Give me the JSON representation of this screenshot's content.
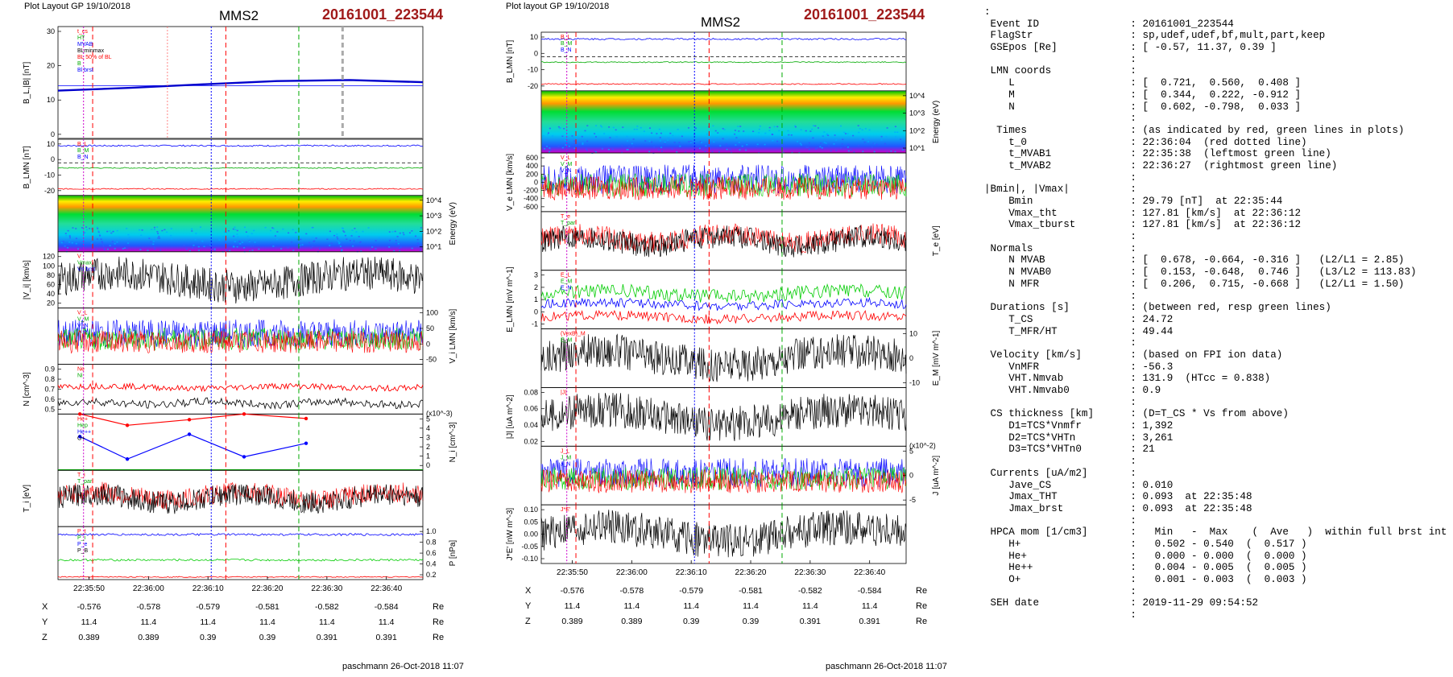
{
  "left_plot": {
    "header": "Plot Layout GP 19/10/2018",
    "spacecraft": "MMS2",
    "event": "20161001_223544",
    "footer": "paschmann 26-Oct-2018 11:07",
    "time_ticks": [
      "22:35:50",
      "22:36:00",
      "22:36:10",
      "22:36:20",
      "22:36:30",
      "22:36:40"
    ],
    "coords": {
      "X": [
        "-0.576",
        "-0.578",
        "-0.579",
        "-0.581",
        "-0.582",
        "-0.584"
      ],
      "Y": [
        "11.4",
        "11.4",
        "11.4",
        "11.4",
        "11.4",
        "11.4"
      ],
      "Z": [
        "0.389",
        "0.389",
        "0.39",
        "0.39",
        "0.391",
        "0.391"
      ],
      "unit": "Re"
    },
    "panels": [
      {
        "ylabel": "B_L,|B| [nT]",
        "ylabel_side": "left",
        "yticks": [
          "30",
          "20",
          "10",
          "0"
        ],
        "legend": [
          "t_cs",
          "HT",
          "MVAB",
          "BLminmax",
          "BL 50% of BL",
          "B",
          "Bl brst"
        ]
      },
      {
        "ylabel": "B_LMN [nT]",
        "ylabel_side": "left",
        "yticks": [
          "10",
          "0",
          "-10",
          "-20"
        ],
        "legend": [
          "B_L",
          "B_M",
          "B_N"
        ]
      },
      {
        "ylabel": "Energy (eV)",
        "ylabel_side": "right",
        "yticks": [
          "10^4",
          "10^3",
          "10^2",
          "10^1"
        ],
        "legend": []
      },
      {
        "ylabel": "|V_i| [km/s]",
        "ylabel_side": "left",
        "yticks": [
          "120",
          "100",
          "80",
          "60",
          "40",
          "20"
        ],
        "legend": [
          "V",
          "Vmax",
          "Vn brst"
        ]
      },
      {
        "ylabel": "V_i LMN [km/s]",
        "ylabel_side": "right",
        "yticks": [
          "100",
          "50",
          "0",
          "-50"
        ],
        "legend": [
          "V_L",
          "V_M",
          "V_N"
        ]
      },
      {
        "ylabel": "N [cm^-3]",
        "ylabel_side": "left",
        "yticks": [
          "0.9",
          "0.8",
          "0.7",
          "0.6",
          "0.5"
        ],
        "legend": [
          "Ne",
          "Ni"
        ]
      },
      {
        "ylabel": "N_i [cm^-3]",
        "ylabel_side": "right",
        "yticks": [
          "5",
          "4",
          "3",
          "2",
          "1",
          "0"
        ],
        "legend": [
          "He+",
          "Hep",
          "He++",
          "O+"
        ],
        "scale_note": "(x10^-3)"
      },
      {
        "ylabel": "T_i [eV]",
        "ylabel_side": "left",
        "yticks": [],
        "legend": [
          "T_i",
          "T_par"
        ]
      },
      {
        "ylabel": "P [nPa]",
        "ylabel_side": "right",
        "yticks": [
          "1.0",
          "0.8",
          "0.6",
          "0.4",
          "0.2"
        ],
        "legend": [
          "P_t",
          "P_i",
          "P_e",
          "P_B"
        ]
      }
    ]
  },
  "right_plot": {
    "header": "Plot layout GP 19/10/2018",
    "spacecraft": "MMS2",
    "event": "20161001_223544",
    "footer": "paschmann 26-Oct-2018 11:07",
    "time_ticks": [
      "22:35:50",
      "22:36:00",
      "22:36:10",
      "22:36:20",
      "22:36:30",
      "22:36:40"
    ],
    "coords": {
      "X": [
        "-0.576",
        "-0.578",
        "-0.579",
        "-0.581",
        "-0.582",
        "-0.584"
      ],
      "Y": [
        "11.4",
        "11.4",
        "11.4",
        "11.4",
        "11.4",
        "11.4"
      ],
      "Z": [
        "0.389",
        "0.389",
        "0.39",
        "0.39",
        "0.391",
        "0.391"
      ],
      "unit": "Re"
    },
    "panels": [
      {
        "ylabel": "B_LMN [nT]",
        "ylabel_side": "left",
        "yticks": [
          "10",
          "0",
          "-10",
          "-20"
        ],
        "legend": [
          "B_L",
          "B_M",
          "B_N"
        ]
      },
      {
        "ylabel": "Energy (eV)",
        "ylabel_side": "right",
        "yticks": [
          "10^4",
          "10^3",
          "10^2",
          "10^1"
        ],
        "legend": []
      },
      {
        "ylabel": "V_e LMN [km/s]",
        "ylabel_side": "left",
        "yticks": [
          "600",
          "400",
          "200",
          "0",
          "-200",
          "-400",
          "-600"
        ],
        "legend": [
          "V_L",
          "V_M",
          "V_N"
        ]
      },
      {
        "ylabel": "T_e [eV]",
        "ylabel_side": "right",
        "yticks": [],
        "legend": [
          "T_e",
          "T_par"
        ]
      },
      {
        "ylabel": "E_LMN [mV m^-1]",
        "ylabel_side": "left",
        "yticks": [
          "3",
          "2",
          "1",
          "0",
          "-1"
        ],
        "legend": [
          "E_L",
          "E_M",
          "E_N"
        ]
      },
      {
        "ylabel": "E_M [mV m^-1]",
        "ylabel_side": "right",
        "yticks": [
          "10",
          "0",
          "-10"
        ],
        "legend": [
          "(VexB)_M",
          "E_M"
        ]
      },
      {
        "ylabel": "|J| [uA m^-2]",
        "ylabel_side": "left",
        "yticks": [
          "0.08",
          "0.06",
          "0.04",
          "0.02"
        ],
        "legend": [
          "|J|"
        ]
      },
      {
        "ylabel": "J [uA m^-2]",
        "ylabel_side": "right",
        "yticks": [
          "5",
          "0",
          "-5"
        ],
        "legend": [
          "J_L",
          "J_M",
          "J_N"
        ],
        "scale_note": "(x10^-2)"
      },
      {
        "ylabel": "J*E' [nW m^-3]",
        "ylabel_side": "left",
        "yticks": [
          "0.10",
          "0.05",
          "0.00",
          "-0.05",
          "-0.10"
        ],
        "legend": [
          "J*E'"
        ]
      }
    ]
  },
  "chart_data": [
    {
      "type": "line",
      "title": "MMS2 20161001_223544",
      "xlabel": "",
      "ylabel": "B_L,|B| [nT]",
      "x": [
        "22:35:50",
        "22:36:00",
        "22:36:10",
        "22:36:20",
        "22:36:30",
        "22:36:40"
      ],
      "ylim": [
        0,
        32
      ],
      "series": [
        {
          "name": "B",
          "values": [
            13.8,
            14.6,
            15.6,
            16.5,
            16.8,
            16.2
          ]
        },
        {
          "name": "BL 50% of BL",
          "values": [
            15.2,
            15.2,
            15.2,
            15.2,
            15.2,
            15.2
          ]
        }
      ],
      "grid": false,
      "legend": "top-left"
    },
    {
      "type": "line",
      "title": "",
      "xlabel": "",
      "ylabel": "N_i [cm^-3]",
      "x": [
        "22:35:46",
        "22:35:54",
        "22:36:05",
        "22:36:16",
        "22:36:27"
      ],
      "ylim": [
        0,
        5
      ],
      "series": [
        {
          "name": "He+",
          "values": [
            5.0,
            4.0,
            4.5,
            5.0,
            4.6
          ]
        },
        {
          "name": "O+",
          "values": [
            3.0,
            1.0,
            3.2,
            1.2,
            2.4
          ]
        }
      ],
      "grid": false,
      "legend": "top-left"
    }
  ],
  "colors": {
    "event_red": "#a01a1a",
    "red": "#ff0000",
    "green": "#00cc00",
    "blue": "#0000ff",
    "black": "#000000"
  },
  "info": {
    "rows": [
      [
        ":",
        ""
      ],
      [
        " Event ID",
        ": 20161001_223544"
      ],
      [
        " FlagStr",
        ": sp,udef,udef,bf,mult,part,keep"
      ],
      [
        " GSEpos [Re]",
        ": [ -0.57, 11.37, 0.39 ]"
      ],
      [
        "",
        ":"
      ],
      [
        " LMN coords",
        ":"
      ],
      [
        "    L",
        ": [  0.721,  0.560,  0.408 ]"
      ],
      [
        "    M",
        ": [  0.344,  0.222, -0.912 ]"
      ],
      [
        "    N",
        ": [  0.602, -0.798,  0.033 ]"
      ],
      [
        "",
        ":"
      ],
      [
        "  Times",
        ": (as indicated by red, green lines in plots)"
      ],
      [
        "    t_0",
        ": 22:36:04  (red dotted line)"
      ],
      [
        "    t_MVAB1",
        ": 22:35:38  (leftmost green line)"
      ],
      [
        "    t_MVAB2",
        ": 22:36:27  (rightmost green line)"
      ],
      [
        "",
        ":"
      ],
      [
        "|Bmin|, |Vmax|",
        ":"
      ],
      [
        "    Bmin",
        ": 29.79 [nT]  at 22:35:44"
      ],
      [
        "    Vmax_tht",
        ": 127.81 [km/s]  at 22:36:12"
      ],
      [
        "    Vmax_tburst",
        ": 127.81 [km/s]  at 22:36:12"
      ],
      [
        "",
        ":"
      ],
      [
        " Normals",
        ":"
      ],
      [
        "    N MVAB",
        ": [  0.678, -0.664, -0.316 ]   (L2/L1 = 2.85)"
      ],
      [
        "    N MVAB0",
        ": [  0.153, -0.648,  0.746 ]   (L3/L2 = 113.83)"
      ],
      [
        "    N MFR",
        ": [  0.206,  0.715, -0.668 ]   (L2/L1 = 1.50)"
      ],
      [
        "",
        ":"
      ],
      [
        " Durations [s]",
        ": (between red, resp green lines)"
      ],
      [
        "    T_CS",
        ": 24.72"
      ],
      [
        "    T_MFR/HT",
        ": 49.44"
      ],
      [
        "",
        ":"
      ],
      [
        " Velocity [km/s]",
        ": (based on FPI ion data)"
      ],
      [
        "    VnMFR",
        ": -56.3"
      ],
      [
        "    VHT.Nmvab",
        ": 131.9  (HTcc = 0.838)"
      ],
      [
        "    VHT.Nmvab0",
        ": 0.9"
      ],
      [
        "",
        ":"
      ],
      [
        " CS thickness [km]",
        ": (D=T_CS * Vs from above)"
      ],
      [
        "    D1=TCS*Vnmfr",
        ": 1,392"
      ],
      [
        "    D2=TCS*VHTn",
        ": 3,261"
      ],
      [
        "    D3=TCS*VHTn0",
        ": 21"
      ],
      [
        "",
        ":"
      ],
      [
        " Currents [uA/m2]",
        ":"
      ],
      [
        "    Jave_CS",
        ": 0.010"
      ],
      [
        "    Jmax_THT",
        ": 0.093  at 22:35:48"
      ],
      [
        "    Jmax_brst",
        ": 0.093  at 22:35:48"
      ],
      [
        "",
        ":"
      ],
      [
        " HPCA mom [1/cm3]",
        ":   Min   -  Max    (  Ave   )  within full brst int"
      ],
      [
        "    H+",
        ":   0.502 - 0.540  (  0.517 )"
      ],
      [
        "    He+",
        ":   0.000 - 0.000  (  0.000 )"
      ],
      [
        "    He++",
        ":   0.004 - 0.005  (  0.005 )"
      ],
      [
        "    O+",
        ":   0.001 - 0.003  (  0.003 )"
      ],
      [
        "",
        ":"
      ],
      [
        " SEH date",
        ": 2019-11-29 09:54:52"
      ],
      [
        "",
        ":"
      ]
    ]
  }
}
